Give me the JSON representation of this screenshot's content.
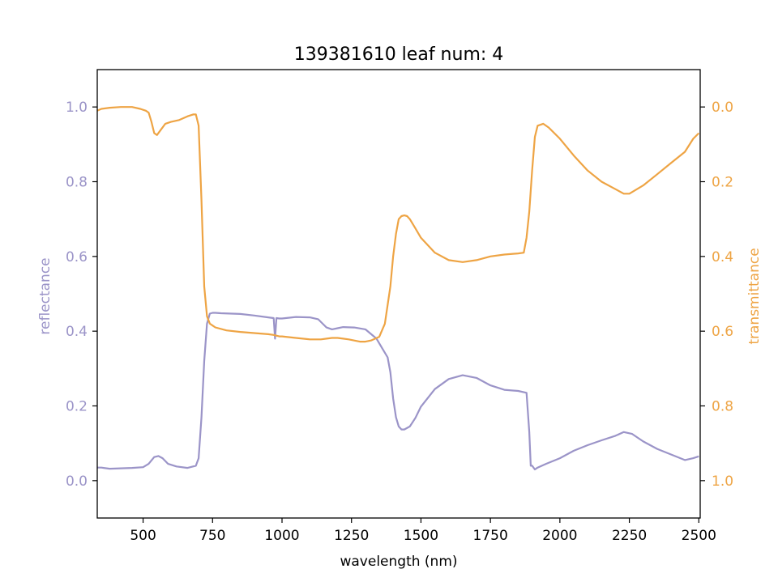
{
  "chart_data": {
    "type": "line",
    "title": "139381610 leaf num: 4",
    "xlabel": "wavelength (nm)",
    "ylabel_left": "reflectance",
    "ylabel_right": "transmittance",
    "xlim": [
      335,
      2505
    ],
    "ylim_left": [
      -0.1,
      1.1
    ],
    "ylim_right": [
      1.1,
      -0.1
    ],
    "right_axis_inverted": true,
    "grid": false,
    "x_ticks": [
      500,
      750,
      1000,
      1250,
      1500,
      1750,
      2000,
      2250,
      2500
    ],
    "x_tick_labels": [
      "500",
      "750",
      "1000",
      "1250",
      "1500",
      "1750",
      "2000",
      "2250",
      "2500"
    ],
    "y_left_ticks": [
      0.0,
      0.2,
      0.4,
      0.6,
      0.8,
      1.0
    ],
    "y_left_tick_labels": [
      "0.0",
      "0.2",
      "0.4",
      "0.6",
      "0.8",
      "1.0"
    ],
    "y_right_ticks": [
      0.0,
      0.2,
      0.4,
      0.6,
      0.8,
      1.0
    ],
    "y_right_tick_labels": [
      "0.0",
      "0.2",
      "0.4",
      "0.6",
      "0.8",
      "1.0"
    ],
    "colors": {
      "reflectance": "#9b94c8",
      "transmittance": "#eea444"
    },
    "series": [
      {
        "key": "reflectance",
        "axis": "left",
        "x": [
          335,
          350,
          380,
          420,
          460,
          500,
          520,
          540,
          555,
          570,
          590,
          620,
          660,
          690,
          700,
          710,
          720,
          730,
          740,
          750,
          760,
          780,
          850,
          900,
          950,
          970,
          975,
          980,
          990,
          1000,
          1050,
          1100,
          1130,
          1160,
          1180,
          1200,
          1220,
          1260,
          1300,
          1340,
          1360,
          1380,
          1390,
          1400,
          1410,
          1420,
          1430,
          1440,
          1460,
          1480,
          1500,
          1550,
          1600,
          1650,
          1700,
          1750,
          1800,
          1850,
          1880,
          1890,
          1895,
          1900,
          1910,
          1920,
          1950,
          2000,
          2050,
          2100,
          2150,
          2200,
          2230,
          2260,
          2300,
          2350,
          2400,
          2450,
          2480,
          2500
        ],
        "y": [
          0.035,
          0.035,
          0.032,
          0.033,
          0.034,
          0.036,
          0.045,
          0.063,
          0.066,
          0.06,
          0.045,
          0.038,
          0.034,
          0.04,
          0.06,
          0.17,
          0.32,
          0.42,
          0.447,
          0.449,
          0.449,
          0.448,
          0.446,
          0.442,
          0.437,
          0.435,
          0.38,
          0.435,
          0.434,
          0.434,
          0.438,
          0.437,
          0.432,
          0.41,
          0.405,
          0.408,
          0.411,
          0.41,
          0.405,
          0.38,
          0.355,
          0.33,
          0.29,
          0.22,
          0.17,
          0.145,
          0.137,
          0.137,
          0.145,
          0.168,
          0.198,
          0.245,
          0.272,
          0.282,
          0.275,
          0.255,
          0.243,
          0.24,
          0.235,
          0.13,
          0.04,
          0.04,
          0.03,
          0.035,
          0.045,
          0.06,
          0.08,
          0.095,
          0.108,
          0.12,
          0.13,
          0.125,
          0.105,
          0.085,
          0.07,
          0.055,
          0.06,
          0.065
        ]
      },
      {
        "key": "transmittance",
        "axis": "right",
        "x": [
          335,
          350,
          380,
          420,
          460,
          490,
          510,
          520,
          530,
          540,
          550,
          560,
          580,
          600,
          630,
          660,
          680,
          690,
          700,
          710,
          720,
          730,
          740,
          750,
          760,
          800,
          850,
          900,
          950,
          970,
          980,
          990,
          1000,
          1050,
          1100,
          1140,
          1160,
          1180,
          1200,
          1220,
          1240,
          1260,
          1280,
          1300,
          1320,
          1350,
          1370,
          1390,
          1400,
          1410,
          1420,
          1430,
          1440,
          1450,
          1460,
          1480,
          1500,
          1550,
          1600,
          1650,
          1700,
          1750,
          1800,
          1850,
          1870,
          1880,
          1890,
          1900,
          1910,
          1920,
          1940,
          1960,
          2000,
          2050,
          2100,
          2150,
          2200,
          2230,
          2250,
          2300,
          2350,
          2400,
          2450,
          2480,
          2500
        ],
        "y": [
          0.01,
          0.005,
          0.002,
          0.0,
          0.0,
          0.005,
          0.01,
          0.015,
          0.04,
          0.07,
          0.075,
          0.065,
          0.045,
          0.04,
          0.035,
          0.025,
          0.02,
          0.02,
          0.05,
          0.25,
          0.48,
          0.56,
          0.58,
          0.585,
          0.59,
          0.598,
          0.602,
          0.605,
          0.608,
          0.61,
          0.612,
          0.614,
          0.614,
          0.618,
          0.622,
          0.622,
          0.62,
          0.618,
          0.618,
          0.62,
          0.622,
          0.625,
          0.628,
          0.628,
          0.625,
          0.615,
          0.58,
          0.48,
          0.4,
          0.34,
          0.3,
          0.292,
          0.29,
          0.292,
          0.3,
          0.325,
          0.35,
          0.39,
          0.41,
          0.415,
          0.41,
          0.4,
          0.395,
          0.392,
          0.39,
          0.35,
          0.28,
          0.17,
          0.08,
          0.05,
          0.045,
          0.055,
          0.085,
          0.13,
          0.17,
          0.2,
          0.22,
          0.232,
          0.232,
          0.21,
          0.18,
          0.15,
          0.12,
          0.085,
          0.07
        ]
      }
    ]
  }
}
